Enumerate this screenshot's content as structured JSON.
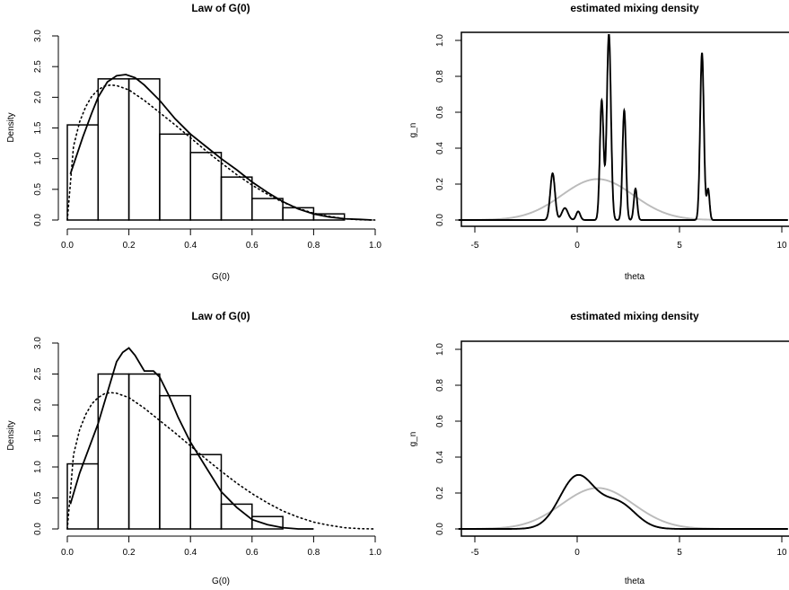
{
  "chart_data": [
    {
      "type": "histogram",
      "title": "Law of G(0)",
      "xlabel": "G(0)",
      "ylabel": "Density",
      "xlim": [
        0,
        1
      ],
      "ylim": [
        0,
        3
      ],
      "xticks": [
        "0.0",
        "0.2",
        "0.4",
        "0.6",
        "0.8",
        "1.0"
      ],
      "yticks": [
        "0.0",
        "0.5",
        "1.0",
        "1.5",
        "2.0",
        "2.5",
        "3.0"
      ],
      "bins": [
        0,
        0.1,
        0.2,
        0.3,
        0.4,
        0.5,
        0.6,
        0.7,
        0.8,
        0.9
      ],
      "bin_width": 0.1,
      "densities": [
        1.55,
        2.3,
        2.3,
        1.4,
        1.1,
        0.7,
        0.35,
        0.2,
        0.1
      ],
      "series": [
        {
          "style": "solid",
          "x": [
            0.01,
            0.03,
            0.05,
            0.08,
            0.1,
            0.13,
            0.16,
            0.19,
            0.22,
            0.25,
            0.3,
            0.35,
            0.4,
            0.45,
            0.5,
            0.55,
            0.6,
            0.65,
            0.7,
            0.75,
            0.8,
            0.85,
            0.9,
            0.95,
            0.99
          ],
          "y": [
            0.75,
            1.05,
            1.35,
            1.75,
            2.0,
            2.25,
            2.35,
            2.37,
            2.32,
            2.2,
            1.95,
            1.65,
            1.4,
            1.2,
            1.0,
            0.82,
            0.62,
            0.45,
            0.3,
            0.18,
            0.1,
            0.05,
            0.02,
            0.01,
            0.0
          ]
        },
        {
          "style": "dotted",
          "x": [
            0.0,
            0.02,
            0.04,
            0.06,
            0.08,
            0.1,
            0.12,
            0.14,
            0.16,
            0.2,
            0.25,
            0.3,
            0.35,
            0.4,
            0.45,
            0.5,
            0.55,
            0.6,
            0.65,
            0.7,
            0.75,
            0.8,
            0.85,
            0.9,
            0.95,
            1.0
          ],
          "y": [
            0.0,
            1.2,
            1.6,
            1.85,
            2.02,
            2.12,
            2.18,
            2.2,
            2.19,
            2.12,
            1.95,
            1.75,
            1.55,
            1.34,
            1.13,
            0.93,
            0.74,
            0.57,
            0.42,
            0.29,
            0.19,
            0.11,
            0.06,
            0.02,
            0.005,
            0.0
          ]
        }
      ]
    },
    {
      "type": "line",
      "title": "estimated mixing density",
      "xlabel": "theta",
      "ylabel": "g_n",
      "xlim": [
        -6,
        10.5
      ],
      "ylim": [
        0,
        1.03
      ],
      "xticks": [
        "-5",
        "0",
        "5",
        "10"
      ],
      "yticks": [
        "0.0",
        "0.2",
        "0.4",
        "0.6",
        "0.8",
        "1.0"
      ],
      "series": [
        {
          "color": "#000000",
          "components": [
            {
              "w": 0.075,
              "mu": -1.2,
              "sd": 0.115
            },
            {
              "w": 0.025,
              "mu": -0.6,
              "sd": 0.15
            },
            {
              "w": 0.012,
              "mu": 0.05,
              "sd": 0.1
            },
            {
              "w": 0.15,
              "mu": 1.2,
              "sd": 0.09
            },
            {
              "w": 0.26,
              "mu": 1.55,
              "sd": 0.1
            },
            {
              "w": 0.13,
              "mu": 2.3,
              "sd": 0.085
            },
            {
              "w": 0.035,
              "mu": 2.85,
              "sd": 0.08
            },
            {
              "w": 0.21,
              "mu": 6.1,
              "sd": 0.09
            },
            {
              "w": 0.03,
              "mu": 6.4,
              "sd": 0.07
            }
          ]
        },
        {
          "color": "#bbbbbb",
          "components": [
            {
              "w": 1.0,
              "mu": 1.0,
              "sd": 1.75
            }
          ]
        }
      ]
    },
    {
      "type": "histogram",
      "title": "Law of G(0)",
      "xlabel": "G(0)",
      "ylabel": "Density",
      "xlim": [
        0,
        1
      ],
      "ylim": [
        0,
        3
      ],
      "xticks": [
        "0.0",
        "0.2",
        "0.4",
        "0.6",
        "0.8",
        "1.0"
      ],
      "yticks": [
        "0.0",
        "0.5",
        "1.0",
        "1.5",
        "2.0",
        "2.5",
        "3.0"
      ],
      "bins": [
        0,
        0.1,
        0.2,
        0.3,
        0.4,
        0.5,
        0.6,
        0.7
      ],
      "bin_width": 0.1,
      "densities": [
        1.05,
        2.5,
        2.5,
        2.15,
        1.2,
        0.4,
        0.2
      ],
      "series": [
        {
          "style": "solid",
          "x": [
            0.01,
            0.04,
            0.07,
            0.1,
            0.13,
            0.16,
            0.18,
            0.2,
            0.22,
            0.25,
            0.28,
            0.3,
            0.33,
            0.36,
            0.4,
            0.45,
            0.5,
            0.55,
            0.6,
            0.65,
            0.7,
            0.75,
            0.8
          ],
          "y": [
            0.4,
            0.9,
            1.3,
            1.7,
            2.2,
            2.7,
            2.85,
            2.92,
            2.8,
            2.55,
            2.55,
            2.45,
            2.15,
            1.8,
            1.4,
            1.0,
            0.6,
            0.35,
            0.15,
            0.07,
            0.02,
            0.0,
            0.0
          ]
        },
        {
          "style": "dotted",
          "x": [
            0.0,
            0.02,
            0.04,
            0.06,
            0.08,
            0.1,
            0.12,
            0.14,
            0.16,
            0.2,
            0.25,
            0.3,
            0.35,
            0.4,
            0.45,
            0.5,
            0.55,
            0.6,
            0.65,
            0.7,
            0.75,
            0.8,
            0.85,
            0.9,
            0.95,
            1.0
          ],
          "y": [
            0.0,
            1.2,
            1.6,
            1.85,
            2.02,
            2.12,
            2.18,
            2.2,
            2.19,
            2.12,
            1.95,
            1.75,
            1.55,
            1.34,
            1.13,
            0.93,
            0.74,
            0.57,
            0.42,
            0.29,
            0.19,
            0.11,
            0.06,
            0.02,
            0.005,
            0.0
          ]
        }
      ]
    },
    {
      "type": "line",
      "title": "estimated mixing density",
      "xlabel": "theta",
      "ylabel": "g_n",
      "xlim": [
        -6,
        10.5
      ],
      "ylim": [
        0,
        1.03
      ],
      "xticks": [
        "-5",
        "0",
        "5",
        "10"
      ],
      "yticks": [
        "0.0",
        "0.2",
        "0.4",
        "0.6",
        "0.8",
        "1.0"
      ],
      "series": [
        {
          "color": "#000000",
          "components": [
            {
              "w": 0.62,
              "mu": 0.0,
              "sd": 0.85
            },
            {
              "w": 0.3,
              "mu": 2.0,
              "sd": 0.85
            }
          ]
        },
        {
          "color": "#bbbbbb",
          "components": [
            {
              "w": 1.0,
              "mu": 1.0,
              "sd": 1.75
            }
          ]
        }
      ]
    }
  ]
}
